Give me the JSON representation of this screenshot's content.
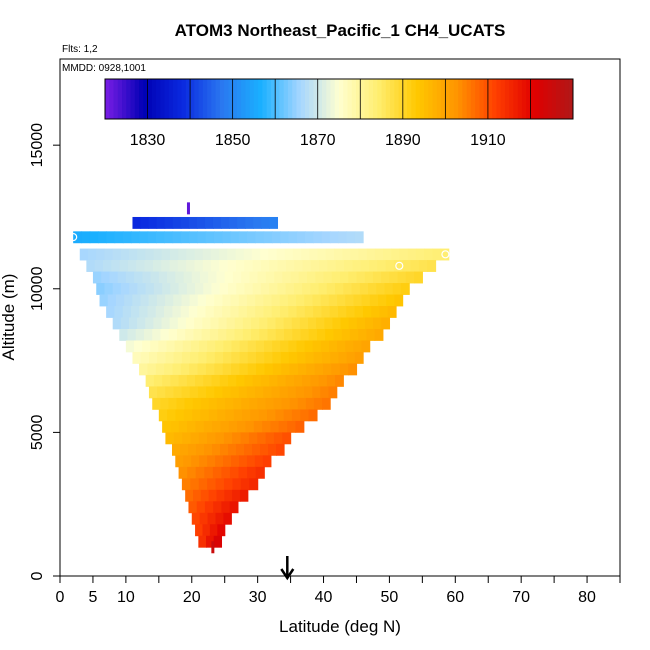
{
  "chart_data": {
    "type": "heatmap",
    "title": "ATOM3 Northeast_Pacific_1 CH4_UCATS",
    "subtitle_flights": "Flts: 1,2",
    "subtitle_dates": "MMDD: 0928,1001",
    "xlabel": "Latitude (deg N)",
    "ylabel": "Altitude (m)",
    "xlim": [
      0,
      85
    ],
    "ylim": [
      0,
      18000
    ],
    "x_ticks": [
      0,
      5,
      10,
      20,
      30,
      40,
      50,
      60,
      70,
      80
    ],
    "x_minor_ticks": [
      15,
      25,
      35,
      45,
      55,
      65,
      75,
      85
    ],
    "y_ticks": [
      0,
      5000,
      10000,
      15000
    ],
    "colorbar": {
      "min": 1820,
      "max": 1930,
      "tick_labels": [
        1830,
        1850,
        1870,
        1890,
        1910
      ],
      "colors": [
        "#7b1ee6",
        "#0000b4",
        "#0a2ae0",
        "#2a78f0",
        "#1ab0ff",
        "#a6d6ff",
        "#ffffd0",
        "#ffee70",
        "#ffc800",
        "#ff9600",
        "#ff4000",
        "#e00000",
        "#b01818"
      ]
    },
    "flight_marker_latitude": 34.5,
    "rows": [
      {
        "alt": 12300,
        "lat_start": 11,
        "lat_end": 33,
        "v_start": 1838,
        "v_end": 1849
      },
      {
        "alt": 11800,
        "lat_start": 2,
        "lat_end": 46,
        "v_start": 1856,
        "v_end": 1867
      },
      {
        "alt": 11200,
        "lat_start": 3,
        "lat_end": 59,
        "v_start": 1866,
        "v_end": 1884
      },
      {
        "alt": 10800,
        "lat_start": 4,
        "lat_end": 57,
        "v_start": 1867,
        "v_end": 1887
      },
      {
        "alt": 10400,
        "lat_start": 5,
        "lat_end": 55,
        "v_start": 1865,
        "v_end": 1890
      },
      {
        "alt": 10000,
        "lat_start": 5.5,
        "lat_end": 53,
        "v_start": 1864,
        "v_end": 1892
      },
      {
        "alt": 9600,
        "lat_start": 6,
        "lat_end": 52,
        "v_start": 1865,
        "v_end": 1894
      },
      {
        "alt": 9200,
        "lat_start": 7,
        "lat_end": 51,
        "v_start": 1866,
        "v_end": 1896
      },
      {
        "alt": 8800,
        "lat_start": 8,
        "lat_end": 50,
        "v_start": 1867,
        "v_end": 1898
      },
      {
        "alt": 8400,
        "lat_start": 9,
        "lat_end": 49,
        "v_start": 1870,
        "v_end": 1899
      },
      {
        "alt": 8000,
        "lat_start": 10,
        "lat_end": 47,
        "v_start": 1874,
        "v_end": 1900
      },
      {
        "alt": 7600,
        "lat_start": 11,
        "lat_end": 46,
        "v_start": 1877,
        "v_end": 1901
      },
      {
        "alt": 7200,
        "lat_start": 12,
        "lat_end": 45,
        "v_start": 1880,
        "v_end": 1903
      },
      {
        "alt": 6800,
        "lat_start": 13,
        "lat_end": 43,
        "v_start": 1884,
        "v_end": 1904
      },
      {
        "alt": 6400,
        "lat_start": 13.5,
        "lat_end": 42,
        "v_start": 1887,
        "v_end": 1905
      },
      {
        "alt": 6000,
        "lat_start": 14,
        "lat_end": 41,
        "v_start": 1890,
        "v_end": 1906
      },
      {
        "alt": 5600,
        "lat_start": 15,
        "lat_end": 39,
        "v_start": 1892,
        "v_end": 1907
      },
      {
        "alt": 5200,
        "lat_start": 15.5,
        "lat_end": 37,
        "v_start": 1894,
        "v_end": 1908
      },
      {
        "alt": 4800,
        "lat_start": 16,
        "lat_end": 35,
        "v_start": 1896,
        "v_end": 1910
      },
      {
        "alt": 4400,
        "lat_start": 17,
        "lat_end": 34,
        "v_start": 1899,
        "v_end": 1911
      },
      {
        "alt": 4000,
        "lat_start": 17.5,
        "lat_end": 32,
        "v_start": 1901,
        "v_end": 1912
      },
      {
        "alt": 3600,
        "lat_start": 18,
        "lat_end": 31,
        "v_start": 1903,
        "v_end": 1914
      },
      {
        "alt": 3200,
        "lat_start": 18.5,
        "lat_end": 30,
        "v_start": 1905,
        "v_end": 1915
      },
      {
        "alt": 2800,
        "lat_start": 19,
        "lat_end": 28.5,
        "v_start": 1907,
        "v_end": 1917
      },
      {
        "alt": 2400,
        "lat_start": 19.5,
        "lat_end": 27,
        "v_start": 1909,
        "v_end": 1918
      },
      {
        "alt": 2000,
        "lat_start": 20,
        "lat_end": 26,
        "v_start": 1911,
        "v_end": 1919
      },
      {
        "alt": 1600,
        "lat_start": 20.5,
        "lat_end": 25,
        "v_start": 1912,
        "v_end": 1920
      },
      {
        "alt": 1200,
        "lat_start": 21,
        "lat_end": 24.5,
        "v_start": 1914,
        "v_end": 1922
      }
    ],
    "ticks_marks": [
      {
        "lat": 19.5,
        "alt": 12800,
        "value": 1822
      },
      {
        "lat": 23.2,
        "alt": 1000,
        "value": 1925
      }
    ],
    "circles": [
      {
        "lat": 2,
        "alt": 11800
      },
      {
        "lat": 51.5,
        "alt": 10800
      },
      {
        "lat": 58.5,
        "alt": 11200
      }
    ]
  }
}
